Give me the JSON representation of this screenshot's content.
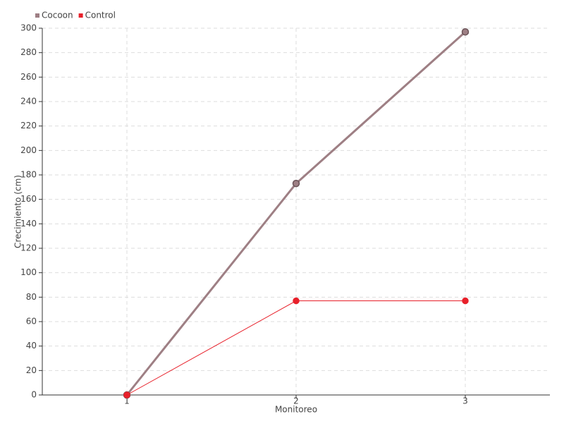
{
  "chart_data": {
    "type": "line",
    "x": [
      1,
      2,
      3
    ],
    "xlim": [
      0.5,
      3.5
    ],
    "xticks": [
      1,
      2,
      3
    ],
    "ylim": [
      0,
      300
    ],
    "yticks": [
      0,
      20,
      40,
      60,
      80,
      100,
      120,
      140,
      160,
      180,
      200,
      220,
      240,
      260,
      280,
      300
    ],
    "xlabel": "Monitoreo",
    "ylabel": "Crecimiento (cm)",
    "grid": true,
    "legend": "top-left",
    "series": [
      {
        "name": "Cocoon",
        "color": "#9e7f84",
        "values": [
          0,
          173,
          297
        ]
      },
      {
        "name": "Control",
        "color": "#e8202a",
        "values": [
          0,
          77,
          77
        ]
      }
    ]
  }
}
